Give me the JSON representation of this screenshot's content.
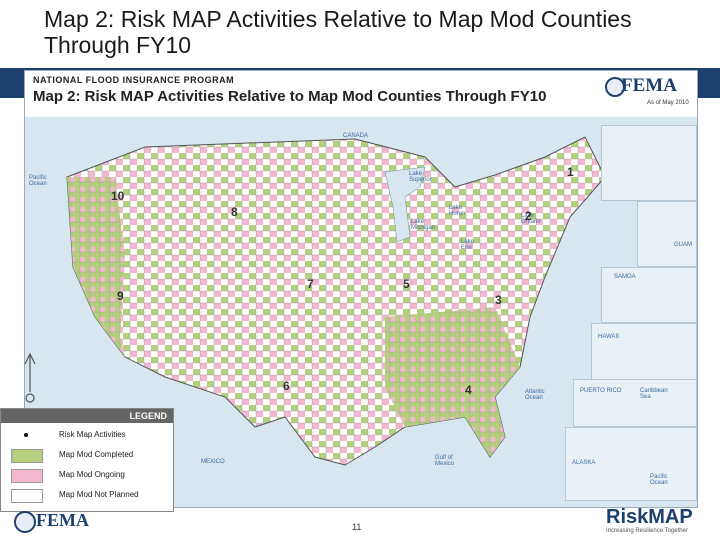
{
  "slide": {
    "title": "Map 2: Risk MAP Activities Relative to Map Mod Counties Through FY10",
    "page_number": "11"
  },
  "map": {
    "program": "NATIONAL FLOOD INSURANCE PROGRAM",
    "title": "Map 2: Risk MAP Activities Relative to Map Mod Counties Through FY10",
    "agency_logo": "FEMA",
    "as_of": "As of May 2010",
    "labels": {
      "canada": "CANADA",
      "mexico": "MEXICO",
      "pacific_ocean": "Pacific Ocean",
      "atlantic_ocean": "Atlantic Ocean",
      "gulf_of_mexico": "Gulf of Mexico",
      "lake_superior": "Lake Superior",
      "lake_michigan": "Lake Michigan",
      "lake_huron": "Lake Huron",
      "lake_erie": "Lake Erie",
      "lake_ontario": "Lake Ontario"
    },
    "regions": [
      "1",
      "2",
      "3",
      "4",
      "5",
      "6",
      "7",
      "8",
      "9",
      "10"
    ],
    "insets": {
      "guam": "GUAM",
      "samoa": "SAMOA",
      "hawaii": "HAWAII",
      "puerto_rico": "PUERTO RICO",
      "alaska": "ALASKA",
      "caribbean_sea": "Caribbean Sea",
      "pacific_ocean": "Pacific Ocean"
    },
    "colors": {
      "completed": "#b5cf7f",
      "ongoing": "#f3b8cf",
      "not_planned": "#ffffff",
      "water": "#d8e6f0",
      "banner": "#1d3f6e"
    }
  },
  "legend": {
    "title": "LEGEND",
    "items": [
      {
        "label": "Risk Map Activities",
        "kind": "dot"
      },
      {
        "label": "Map Mod Completed",
        "color": "#b5cf7f"
      },
      {
        "label": "Map Mod Ongoing",
        "color": "#f3b8cf"
      },
      {
        "label": "Map Mod Not Planned",
        "color": "#ffffff"
      }
    ]
  },
  "footer": {
    "fema_logo": "FEMA",
    "riskmap_logo": "RiskMAP",
    "riskmap_tagline": "Increasing Resilience Together"
  }
}
